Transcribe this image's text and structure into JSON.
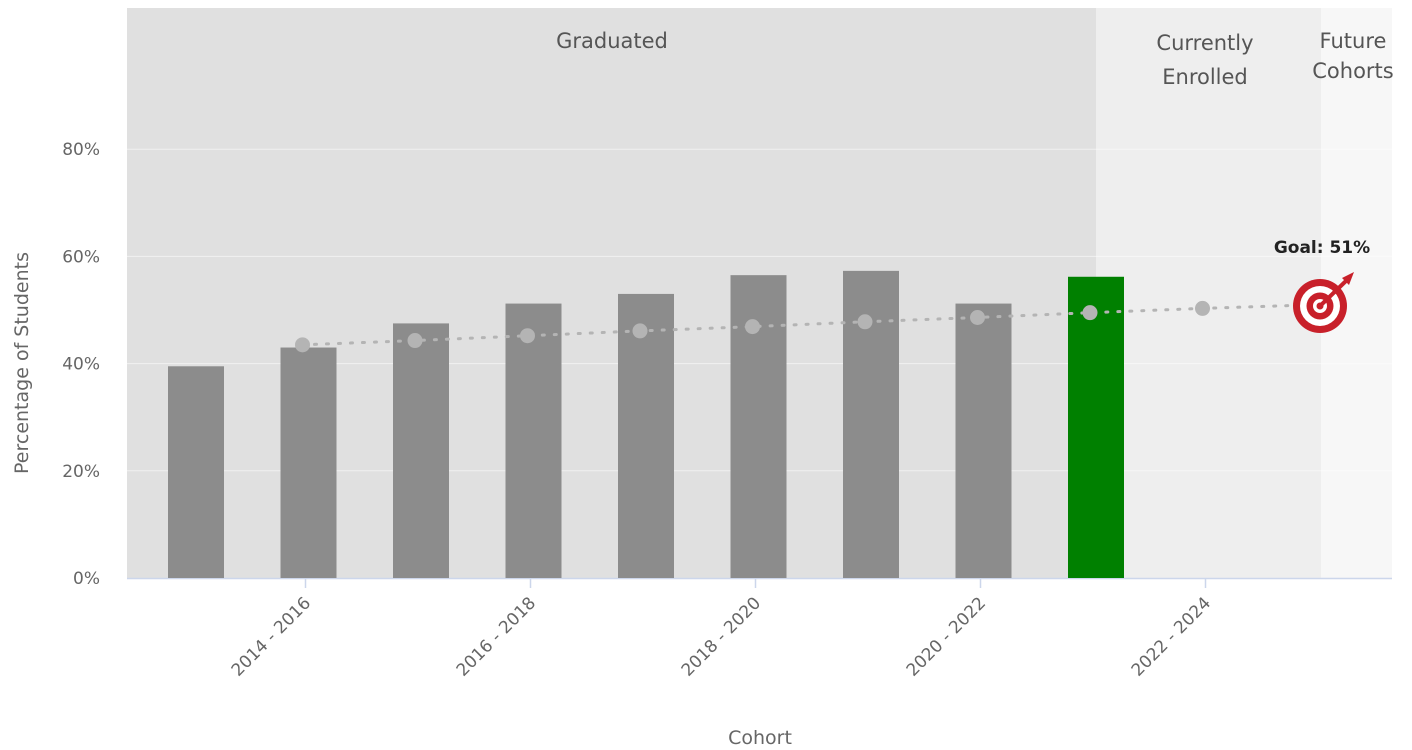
{
  "chart_data": {
    "type": "bar",
    "xlabel": "Cohort",
    "ylabel": "Percentage of Students",
    "ylim": [
      0,
      100
    ],
    "y_ticks": [
      "0%",
      "20%",
      "40%",
      "60%",
      "80%"
    ],
    "x_tick_labels": [
      "2014 - 2016",
      "2016 - 2018",
      "2018 - 2020",
      "2020 - 2022",
      "2022 - 2024"
    ],
    "bands": [
      {
        "label": [
          "Graduated"
        ],
        "color": "#e0e0e0"
      },
      {
        "label": [
          "Currently",
          "Enrolled"
        ],
        "color": "#eeeeee"
      },
      {
        "label": [
          "Future",
          "Cohorts"
        ],
        "color": "#f7f7f7"
      }
    ],
    "series": [
      {
        "type": "bar",
        "values": [
          39.5,
          43,
          47.5,
          51.2,
          53,
          56.5,
          57.3,
          51.2,
          56.2
        ],
        "colors": [
          "#8c8c8c",
          "#8c8c8c",
          "#8c8c8c",
          "#8c8c8c",
          "#8c8c8c",
          "#8c8c8c",
          "#8c8c8c",
          "#8c8c8c",
          "#008000"
        ]
      },
      {
        "type": "line",
        "style": "dotted",
        "values": [
          43.5,
          44.3,
          45.2,
          46.1,
          46.9,
          47.8,
          48.6,
          49.5,
          50.3
        ],
        "color": "#b4b4b4"
      }
    ],
    "goal": {
      "label": "Goal: 51%",
      "value": 51,
      "icon": "target-icon",
      "color": "#c8202a"
    },
    "grid": true
  }
}
